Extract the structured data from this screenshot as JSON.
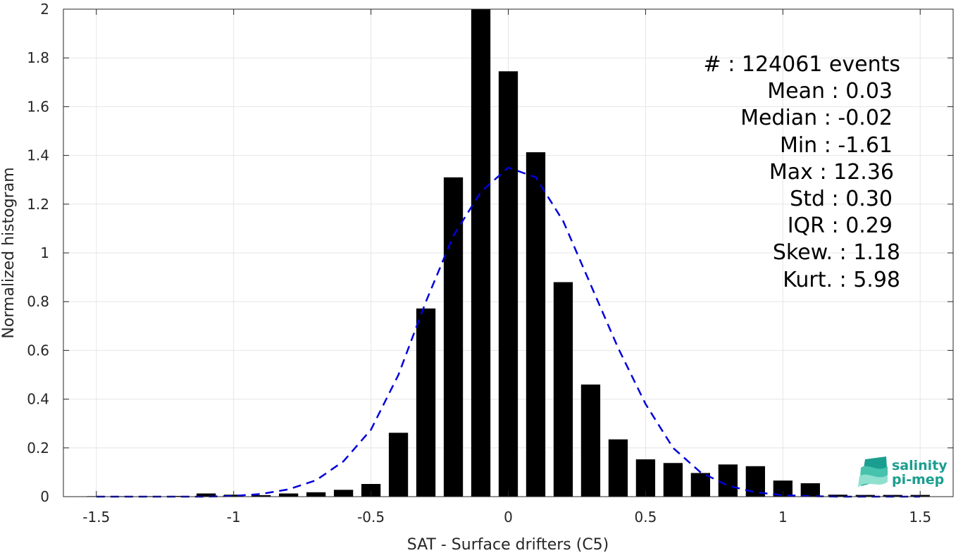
{
  "chart_data": {
    "type": "bar",
    "xlabel": "SAT - Surface drifters (C5)",
    "ylabel": "Normalized histogram",
    "xlim": [
      -1.62,
      1.62
    ],
    "ylim": [
      0,
      2
    ],
    "grid": true,
    "xticks": [
      -1.5,
      -1,
      -0.5,
      0,
      0.5,
      1,
      1.5
    ],
    "xtick_labels": [
      "-1.5",
      "-1",
      "-0.5",
      "0",
      "0.5",
      "1",
      "1.5"
    ],
    "yticks": [
      0,
      0.2,
      0.4,
      0.6,
      0.8,
      1,
      1.2,
      1.4,
      1.6,
      1.8,
      2
    ],
    "ytick_labels": [
      "0",
      "0.2",
      "0.4",
      "0.6",
      "0.8",
      "1",
      "1.2",
      "1.4",
      "1.6",
      "1.8",
      "2"
    ],
    "bar_width": 0.07,
    "bar_color": "#000000",
    "bars": {
      "x": [
        -1.5,
        -1.4,
        -1.3,
        -1.2,
        -1.1,
        -1.0,
        -0.9,
        -0.8,
        -0.7,
        -0.6,
        -0.5,
        -0.4,
        -0.3,
        -0.2,
        -0.1,
        0.0,
        0.1,
        0.2,
        0.3,
        0.4,
        0.5,
        0.6,
        0.7,
        0.8,
        0.9,
        1.0,
        1.1,
        1.2,
        1.3,
        1.4,
        1.5
      ],
      "values": [
        0.002,
        0.002,
        0.002,
        0.003,
        0.013,
        0.008,
        0.006,
        0.013,
        0.018,
        0.028,
        0.052,
        0.262,
        0.772,
        1.31,
        2.0,
        1.745,
        1.413,
        0.88,
        0.46,
        0.235,
        0.153,
        0.138,
        0.097,
        0.132,
        0.125,
        0.066,
        0.055,
        0.008,
        0.007,
        0.007,
        0.007
      ]
    },
    "fit_curve": {
      "style": "dashed",
      "color": "#0000dd",
      "x": [
        -1.5,
        -1.4,
        -1.3,
        -1.2,
        -1.1,
        -1.0,
        -0.9,
        -0.8,
        -0.7,
        -0.6,
        -0.5,
        -0.4,
        -0.3,
        -0.2,
        -0.1,
        0.0,
        0.1,
        0.2,
        0.3,
        0.4,
        0.5,
        0.6,
        0.7,
        0.8,
        0.9,
        1.0,
        1.1,
        1.2,
        1.3,
        1.4,
        1.5
      ],
      "y": [
        0.0,
        0.0,
        0.0,
        0.0,
        0.0,
        0.003,
        0.011,
        0.03,
        0.067,
        0.145,
        0.275,
        0.5,
        0.8,
        1.07,
        1.25,
        1.35,
        1.31,
        1.13,
        0.87,
        0.61,
        0.38,
        0.2,
        0.1,
        0.045,
        0.018,
        0.006,
        0.002,
        0.0,
        0.0,
        0.0,
        0.0
      ]
    },
    "annotations": [
      "#  : 124061 events",
      "Mean : 0.03",
      "Median : -0.02",
      "Min : -1.61",
      "Max : 12.36",
      "Std : 0.30",
      "IQR : 0.29",
      "Skew. : 1.18",
      "Kurt. : 5.98"
    ]
  },
  "logo": {
    "line1": "salinity",
    "line2": "pi-mep",
    "color": "#1a9e8f"
  }
}
